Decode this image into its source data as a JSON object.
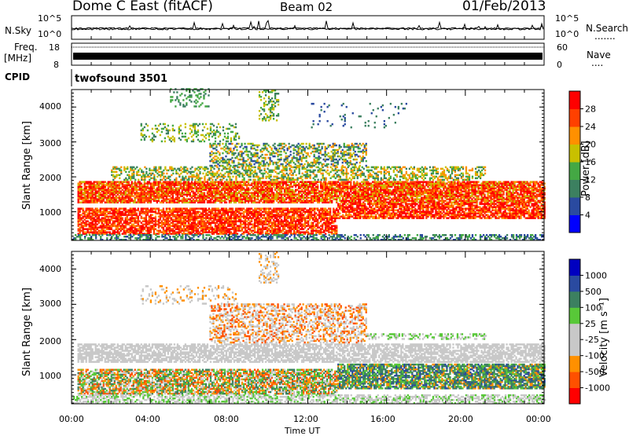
{
  "header": {
    "station": "Dome C East (fitACF)",
    "beam": "Beam 02",
    "date": "01/Feb/2013"
  },
  "noise_panel": {
    "left_label": "N.Sky",
    "right_label": "N.Search",
    "right_dots": ".......",
    "tick_top": "10^5",
    "tick_bottom": "10^0"
  },
  "freq_panel": {
    "left_label_line1": "Freq.",
    "left_label_line2": "[MHz]",
    "tick_top": "18",
    "tick_bottom": "8",
    "right_label": "Nave",
    "right_dots": "....",
    "right_tick_top": "60",
    "right_tick_bottom": "0"
  },
  "cpid_panel": {
    "label": "CPID",
    "value": "twofsound 3501"
  },
  "chart_data": [
    {
      "type": "heatmap",
      "name": "power",
      "ylabel": "Slant Range [km]",
      "yticks": [
        "1000",
        "2000",
        "3000",
        "4000"
      ],
      "colorbar_label": "Power [dB]",
      "colorbar_ticks": [
        "4",
        "8",
        "12",
        "16",
        "20",
        "24",
        "28"
      ],
      "colors": [
        "#0000ff",
        "#2a4aa0",
        "#3c8060",
        "#44a844",
        "#c8c000",
        "#ff9000",
        "#ff4000",
        "#ff0000"
      ]
    },
    {
      "type": "heatmap",
      "name": "velocity",
      "ylabel": "Slant Range [km]",
      "yticks": [
        "1000",
        "2000",
        "3000",
        "4000"
      ],
      "colorbar_label": "Velocity [m s⁻¹]",
      "colorbar_ticks": [
        "-1000",
        "-500",
        "-100",
        "-25",
        "25",
        "100",
        "500",
        "1000"
      ],
      "colors": [
        "#ff0000",
        "#ff5000",
        "#ff9000",
        "#c8c8c8",
        "#c8c8c8",
        "#58c838",
        "#3c8060",
        "#2a4aa0",
        "#0000c0"
      ]
    }
  ],
  "x_axis": {
    "label": "Time UT",
    "ticks": [
      "00:00",
      "04:00",
      "08:00",
      "12:00",
      "16:00",
      "20:00",
      "00:00"
    ]
  }
}
